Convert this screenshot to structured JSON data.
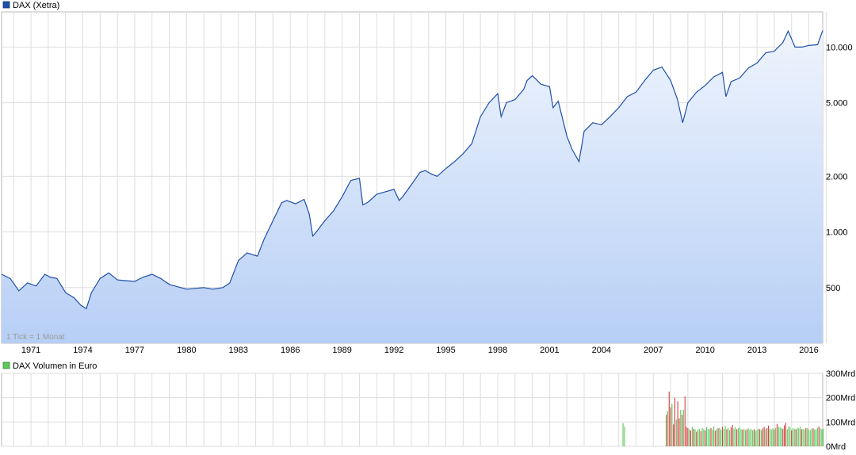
{
  "chart_data": [
    {
      "type": "area",
      "legend": "DAX (Xetra)",
      "note": "1 Tick = 1 Monat",
      "scale": "log",
      "grid": true,
      "legend_placement": "top-left",
      "colors": {
        "line": "#1f4fa8",
        "fill_top": "#eef4fd",
        "fill_bottom": "#b7cff5",
        "legend_box": "#1f4fa8"
      },
      "x_ticks": [
        "1971",
        "1974",
        "1977",
        "1980",
        "1983",
        "1986",
        "1989",
        "1992",
        "1995",
        "1998",
        "2001",
        "2004",
        "2007",
        "2010",
        "2013",
        "2016"
      ],
      "y_ticks": [
        {
          "value": 500,
          "label": "500"
        },
        {
          "value": 1000,
          "label": "1.000"
        },
        {
          "value": 2000,
          "label": "2.000"
        },
        {
          "value": 5000,
          "label": "5.000"
        },
        {
          "value": 10000,
          "label": "10.000"
        }
      ],
      "ylim": [
        250,
        15500
      ],
      "xlim": [
        1969.8,
        2017.3
      ],
      "x": [
        1969.8,
        1970.3,
        1970.8,
        1971.3,
        1971.8,
        1972.3,
        1972.6,
        1973.0,
        1973.5,
        1974.0,
        1974.4,
        1974.7,
        1975.0,
        1975.5,
        1976.0,
        1976.5,
        1977.0,
        1977.5,
        1978.0,
        1978.5,
        1979.0,
        1979.5,
        1980.0,
        1980.5,
        1981.0,
        1981.5,
        1982.0,
        1982.6,
        1983.0,
        1983.5,
        1984.0,
        1984.6,
        1985.0,
        1985.5,
        1986.0,
        1986.3,
        1986.8,
        1987.3,
        1987.6,
        1987.8,
        1988.0,
        1988.5,
        1989.0,
        1989.5,
        1990.0,
        1990.5,
        1990.7,
        1991.0,
        1991.5,
        1992.0,
        1992.5,
        1992.8,
        1993.0,
        1993.5,
        1994.0,
        1994.3,
        1994.7,
        1995.0,
        1995.5,
        1996.0,
        1996.5,
        1997.0,
        1997.5,
        1998.0,
        1998.5,
        1998.7,
        1999.0,
        1999.5,
        2000.0,
        2000.2,
        2000.5,
        2001.0,
        2001.5,
        2001.7,
        2002.0,
        2002.5,
        2002.8,
        2003.2,
        2003.5,
        2004.0,
        2004.5,
        2005.0,
        2005.5,
        2006.0,
        2006.5,
        2007.0,
        2007.5,
        2008.0,
        2008.5,
        2008.9,
        2009.2,
        2009.5,
        2010.0,
        2010.5,
        2011.0,
        2011.5,
        2011.7,
        2012.0,
        2012.5,
        2013.0,
        2013.5,
        2014.0,
        2014.5,
        2015.0,
        2015.3,
        2015.7,
        2016.1,
        2016.5,
        2017.0,
        2017.3
      ],
      "values": [
        590,
        560,
        480,
        530,
        510,
        590,
        570,
        560,
        470,
        440,
        400,
        385,
        470,
        560,
        600,
        550,
        545,
        540,
        570,
        590,
        560,
        520,
        505,
        490,
        495,
        500,
        490,
        500,
        530,
        700,
        770,
        740,
        920,
        1150,
        1440,
        1480,
        1420,
        1500,
        1250,
        950,
        1000,
        1150,
        1300,
        1550,
        1900,
        1950,
        1400,
        1450,
        1600,
        1650,
        1700,
        1480,
        1550,
        1800,
        2100,
        2150,
        2050,
        2000,
        2200,
        2400,
        2650,
        3000,
        4200,
        5000,
        5600,
        4200,
        5000,
        5200,
        5900,
        6600,
        7000,
        6300,
        6100,
        4700,
        5100,
        3300,
        2800,
        2400,
        3500,
        3900,
        3800,
        4200,
        4700,
        5400,
        5700,
        6600,
        7500,
        7800,
        6600,
        5200,
        3900,
        5000,
        5700,
        6200,
        6900,
        7300,
        5400,
        6500,
        6800,
        7700,
        8200,
        9300,
        9500,
        10600,
        12200,
        10000,
        10000,
        10200,
        10300,
        12300
      ]
    },
    {
      "type": "bar",
      "legend": "DAX Volumen in Euro",
      "grid": true,
      "legend_placement": "top-left",
      "colors": {
        "up": "#5cc85c",
        "down": "#d23f3f",
        "legend_box": "#5cc85c"
      },
      "y_ticks": [
        "0Mrd",
        "100Mrd",
        "200Mrd",
        "300Mrd"
      ],
      "ylim": [
        0,
        300
      ],
      "unit": "Mrd",
      "x_start": 2005.75,
      "x_step": 0.0833,
      "values": [
        95,
        82,
        0,
        0,
        0,
        0,
        0,
        0,
        0,
        0,
        0,
        0,
        0,
        0,
        0,
        0,
        0,
        0,
        0,
        0,
        0,
        0,
        0,
        0,
        0,
        0,
        0,
        0,
        0,
        0,
        130,
        145,
        225,
        160,
        175,
        90,
        200,
        110,
        185,
        115,
        150,
        130,
        150,
        205,
        80,
        75,
        70,
        65,
        80,
        72,
        70,
        60,
        68,
        72,
        62,
        75,
        70,
        66,
        78,
        72,
        70,
        75,
        68,
        82,
        64,
        70,
        74,
        76,
        68,
        80,
        72,
        84,
        70,
        76,
        66,
        78,
        88,
        72,
        80,
        70,
        74,
        78,
        70,
        68,
        72,
        66,
        70,
        74,
        68,
        72,
        66,
        70,
        64,
        68,
        72,
        70,
        66,
        74,
        80,
        70,
        75,
        85,
        72,
        68,
        74,
        70,
        76,
        92,
        80,
        78,
        74,
        72,
        86,
        96,
        70,
        82,
        78,
        66,
        74,
        72,
        70,
        76,
        74,
        80,
        70,
        72,
        68,
        76,
        74,
        70,
        66,
        72,
        74,
        70,
        68,
        76,
        82,
        74,
        70,
        72
      ],
      "direction": [
        1,
        1,
        0,
        0,
        0,
        0,
        0,
        0,
        0,
        0,
        0,
        0,
        0,
        0,
        0,
        0,
        0,
        0,
        0,
        0,
        0,
        0,
        0,
        0,
        0,
        0,
        0,
        0,
        0,
        0,
        -1,
        1,
        -1,
        -1,
        1,
        -1,
        -1,
        1,
        -1,
        -1,
        1,
        -1,
        1,
        -1,
        -1,
        -1,
        1,
        -1,
        1,
        -1,
        1,
        -1,
        1,
        1,
        -1,
        1,
        1,
        -1,
        1,
        1,
        1,
        -1,
        1,
        1,
        -1,
        1,
        -1,
        1,
        1,
        -1,
        1,
        1,
        -1,
        1,
        1,
        -1,
        -1,
        1,
        1,
        -1,
        1,
        1,
        1,
        -1,
        1,
        1,
        -1,
        1,
        1,
        1,
        1,
        -1,
        1,
        1,
        1,
        -1,
        1,
        -1,
        -1,
        1,
        -1,
        -1,
        1,
        1,
        1,
        -1,
        1,
        -1,
        1,
        1,
        1,
        -1,
        -1,
        -1,
        1,
        1,
        1,
        -1,
        1,
        1,
        -1,
        1,
        1,
        1,
        -1,
        1,
        1,
        -1,
        1,
        1,
        1,
        1,
        -1,
        1,
        1,
        1,
        -1,
        1,
        1,
        1
      ]
    }
  ]
}
